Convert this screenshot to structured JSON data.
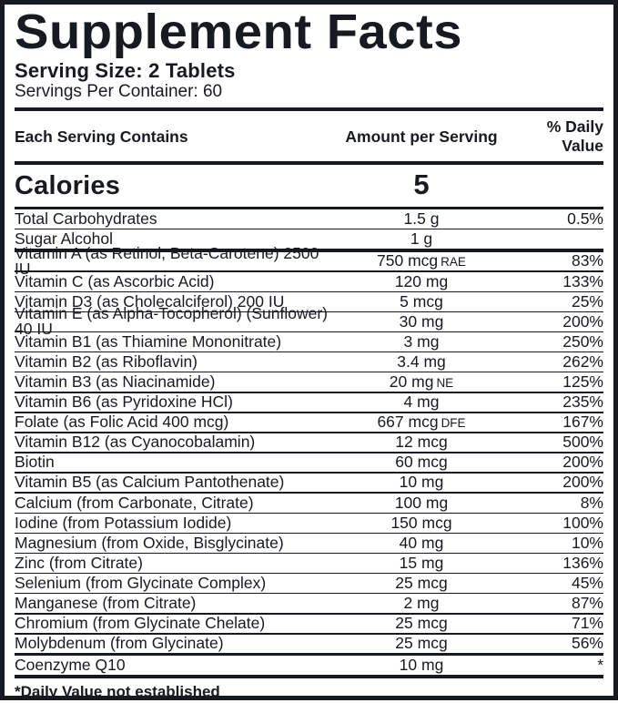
{
  "panel": {
    "title": "Supplement Facts",
    "serving_size": "Serving Size: 2 Tablets",
    "servings_per_container": "Servings Per Container: 60",
    "header": {
      "contains": "Each Serving Contains",
      "amount": "Amount per Serving",
      "daily_value": "% Daily Value"
    },
    "calories": {
      "name": "Calories",
      "value": "5",
      "dv": ""
    },
    "rows": [
      {
        "name": "Total Carbohydrates",
        "amount": "1.5 g",
        "suffix": "",
        "dv": "0.5%",
        "sep_after": "thin"
      },
      {
        "name": "Sugar Alcohol",
        "amount": "1 g",
        "suffix": "",
        "dv": "",
        "sep_after": "thick"
      },
      {
        "name": "Vitamin A (as Retinol, Beta-Carotene) 2500 IU",
        "amount": "750 mcg",
        "suffix": "RAE",
        "dv": "83%",
        "sep_after": "thin"
      },
      {
        "name": "Vitamin C (as Ascorbic Acid)",
        "amount": "120 mg",
        "suffix": "",
        "dv": "133%",
        "sep_after": "thin"
      },
      {
        "name": "Vitamin D3 (as Cholecalciferol) 200 IU",
        "amount": "5 mcg",
        "suffix": "",
        "dv": "25%",
        "sep_after": "thin"
      },
      {
        "name": "Vitamin E (as Alpha-Tocopherol) (Sunflower) 40 IU",
        "amount": "30 mg",
        "suffix": "",
        "dv": "200%",
        "sep_after": "thin"
      },
      {
        "name": "Vitamin B1 (as Thiamine Mononitrate)",
        "amount": "3 mg",
        "suffix": "",
        "dv": "250%",
        "sep_after": "thin"
      },
      {
        "name": "Vitamin B2 (as Riboflavin)",
        "amount": "3.4 mg",
        "suffix": "",
        "dv": "262%",
        "sep_after": "thin"
      },
      {
        "name": "Vitamin B3 (as Niacinamide)",
        "amount": "20 mg",
        "suffix": "NE",
        "dv": "125%",
        "sep_after": "thin"
      },
      {
        "name": "Vitamin B6 (as Pyridoxine HCl)",
        "amount": "4 mg",
        "suffix": "",
        "dv": "235%",
        "sep_after": "thin"
      },
      {
        "name": "Folate (as Folic Acid 400 mcg)",
        "amount": "667 mcg",
        "suffix": "DFE",
        "dv": "167%",
        "sep_after": "thin"
      },
      {
        "name": "Vitamin B12 (as Cyanocobalamin)",
        "amount": "12 mcg",
        "suffix": "",
        "dv": "500%",
        "sep_after": "thin"
      },
      {
        "name": "Biotin",
        "amount": "60 mcg",
        "suffix": "",
        "dv": "200%",
        "sep_after": "thin"
      },
      {
        "name": "Vitamin B5 (as Calcium Pantothenate)",
        "amount": "10 mg",
        "suffix": "",
        "dv": "200%",
        "sep_after": "thin"
      },
      {
        "name": "Calcium (from Carbonate, Citrate)",
        "amount": "100 mg",
        "suffix": "",
        "dv": "8%",
        "sep_after": "thin"
      },
      {
        "name": "Iodine (from Potassium Iodide)",
        "amount": "150 mcg",
        "suffix": "",
        "dv": "100%",
        "sep_after": "thin"
      },
      {
        "name": "Magnesium (from Oxide, Bisglycinate)",
        "amount": "40 mg",
        "suffix": "",
        "dv": "10%",
        "sep_after": "thin"
      },
      {
        "name": "Zinc (from Citrate)",
        "amount": "15 mg",
        "suffix": "",
        "dv": "136%",
        "sep_after": "thin"
      },
      {
        "name": "Selenium (from Glycinate Complex)",
        "amount": "25 mcg",
        "suffix": "",
        "dv": "45%",
        "sep_after": "thin"
      },
      {
        "name": "Manganese (from Citrate)",
        "amount": "2 mg",
        "suffix": "",
        "dv": "87%",
        "sep_after": "thin"
      },
      {
        "name": "Chromium (from Glycinate Chelate)",
        "amount": "25 mcg",
        "suffix": "",
        "dv": "71%",
        "sep_after": "thin"
      },
      {
        "name": "Molybdenum (from Glycinate)",
        "amount": "25 mcg",
        "suffix": "",
        "dv": "56%",
        "sep_after": "medium"
      },
      {
        "name": "Coenzyme Q10",
        "amount": "10 mg",
        "suffix": "",
        "dv": "*",
        "sep_after": "thick"
      }
    ],
    "footnote": "*Daily Value not established",
    "colors": {
      "ink": "#171a20",
      "background": "#ffffff"
    }
  }
}
